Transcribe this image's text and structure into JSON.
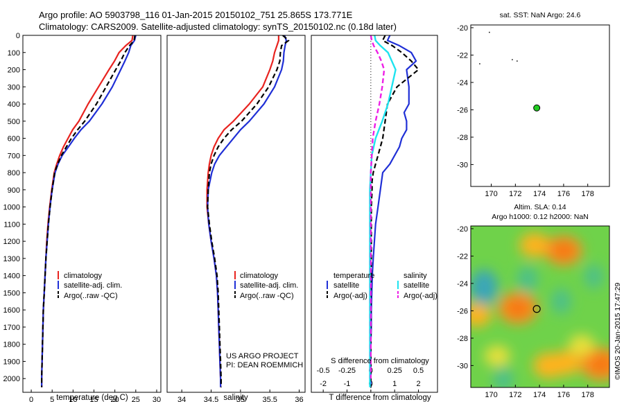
{
  "title": {
    "line1": "Argo profile: AO 5903798_116 01-Jan-2015 20150102_751 25.865S 173.771E",
    "line2": "Climatology: CARS2009. Satellite-adjusted climatology: synTS_20150102.nc (0.18d later)"
  },
  "credit": "©IMOS 20-Jan-2015 17:47:29",
  "project": {
    "line1": "US ARGO PROJECT",
    "line2": "PI: DEAN ROEMMICH"
  },
  "colors": {
    "climatology": "#e8231f",
    "satellite": "#1f2fd6",
    "argo": "#000000",
    "sat_diff_S": "#1ee3ef",
    "argo_diff_S": "#ee1fe6",
    "marker": "#22cc22"
  },
  "chart_data": [
    {
      "type": "line",
      "id": "temperature",
      "xlabel": "temperature (deg C)",
      "ylabel": "",
      "xlim": [
        -2,
        31
      ],
      "ylim": [
        2080,
        0
      ],
      "xticks": [
        0,
        5,
        10,
        15,
        20,
        25,
        30
      ],
      "yticks": [
        0,
        100,
        200,
        300,
        400,
        500,
        600,
        700,
        800,
        900,
        1000,
        1100,
        1200,
        1300,
        1400,
        1500,
        1600,
        1700,
        1800,
        1900,
        2000
      ],
      "legend": [
        "climatology",
        "satellite-adj. clim.",
        "Argo(..raw -QC)"
      ],
      "series": [
        {
          "name": "climatology",
          "style": "climatology",
          "x": [
            24.3,
            24.1,
            22.6,
            21.0,
            19.9,
            18.6,
            16.1,
            13.6,
            11.4,
            9.9,
            8.8,
            7.7,
            6.8,
            6.1,
            5.5,
            4.9,
            4.4,
            4.0,
            3.7,
            3.5,
            3.3,
            3.1,
            2.9,
            2.8,
            2.7,
            2.6,
            2.5,
            2.5
          ],
          "y": [
            0,
            30,
            60,
            100,
            150,
            200,
            300,
            400,
            500,
            550,
            600,
            650,
            700,
            750,
            800,
            900,
            1000,
            1100,
            1200,
            1300,
            1400,
            1500,
            1600,
            1700,
            1800,
            1900,
            2000,
            2050
          ]
        },
        {
          "name": "satellite-adj. clim.",
          "style": "satellite",
          "x": [
            25.0,
            24.7,
            23.8,
            23.3,
            22.4,
            21.4,
            19.4,
            16.9,
            13.9,
            11.9,
            10.3,
            8.9,
            7.4,
            6.4,
            5.7,
            5.0,
            4.5,
            4.1,
            3.8,
            3.5,
            3.3,
            3.1,
            2.9,
            2.8,
            2.7,
            2.6,
            2.5,
            2.5
          ],
          "y": [
            0,
            30,
            60,
            100,
            150,
            200,
            300,
            400,
            500,
            550,
            600,
            650,
            700,
            750,
            800,
            900,
            1000,
            1100,
            1200,
            1300,
            1400,
            1500,
            1600,
            1700,
            1800,
            1900,
            2000,
            2050
          ]
        },
        {
          "name": "Argo(..raw -QC)",
          "style": "argo",
          "x": [
            24.8,
            24.6,
            23.5,
            22.4,
            21.4,
            20.2,
            17.9,
            15.6,
            12.8,
            11.1,
            9.6,
            8.4,
            7.2,
            6.3,
            5.6,
            5.0,
            4.5,
            4.1,
            3.8,
            3.5,
            3.3,
            3.1,
            2.9,
            2.8,
            2.7,
            2.6,
            2.5,
            2.5
          ],
          "y": [
            0,
            30,
            60,
            100,
            150,
            200,
            300,
            400,
            500,
            550,
            600,
            650,
            700,
            750,
            800,
            900,
            1000,
            1100,
            1200,
            1300,
            1400,
            1500,
            1600,
            1700,
            1800,
            1900,
            2000,
            2050
          ]
        }
      ]
    },
    {
      "type": "line",
      "id": "salinity",
      "xlabel": "salinity",
      "ylabel": "",
      "xlim": [
        33.75,
        36.1
      ],
      "ylim": [
        2080,
        0
      ],
      "xticks": [
        34,
        34.5,
        35,
        35.5,
        36
      ],
      "legend": [
        "climatology",
        "satellite-adj. clim.",
        "Argo(..raw -QC)"
      ],
      "series": [
        {
          "name": "climatology",
          "style": "climatology",
          "x": [
            35.65,
            35.65,
            35.62,
            35.58,
            35.55,
            35.5,
            35.38,
            35.15,
            34.88,
            34.72,
            34.62,
            34.55,
            34.5,
            34.47,
            34.45,
            34.43,
            34.43,
            34.46,
            34.5,
            34.55,
            34.59,
            34.61,
            34.62,
            34.63,
            34.64,
            34.65,
            34.66,
            34.66
          ],
          "y": [
            0,
            30,
            60,
            100,
            150,
            200,
            300,
            400,
            500,
            550,
            600,
            650,
            700,
            750,
            800,
            900,
            1000,
            1100,
            1200,
            1300,
            1400,
            1500,
            1600,
            1700,
            1800,
            1900,
            2000,
            2050
          ]
        },
        {
          "name": "satellite-adj. clim.",
          "style": "satellite",
          "x": [
            35.75,
            35.78,
            35.76,
            35.74,
            35.73,
            35.7,
            35.58,
            35.4,
            35.15,
            35.0,
            34.88,
            34.76,
            34.64,
            34.56,
            34.51,
            34.45,
            34.44,
            34.46,
            34.5,
            34.55,
            34.59,
            34.61,
            34.62,
            34.63,
            34.64,
            34.65,
            34.66,
            34.66
          ],
          "y": [
            0,
            30,
            60,
            100,
            150,
            200,
            300,
            400,
            500,
            550,
            600,
            650,
            700,
            750,
            800,
            900,
            1000,
            1100,
            1200,
            1300,
            1400,
            1500,
            1600,
            1700,
            1800,
            1900,
            2000,
            2050
          ]
        },
        {
          "name": "Argo(..raw -QC)",
          "style": "argo",
          "x": [
            35.72,
            35.82,
            35.7,
            35.68,
            35.67,
            35.62,
            35.48,
            35.28,
            35.02,
            34.85,
            34.72,
            34.62,
            34.55,
            34.5,
            34.47,
            34.45,
            34.44,
            34.47,
            34.51,
            34.56,
            34.6,
            34.62,
            34.63,
            34.64,
            34.65,
            34.66,
            34.67,
            34.67
          ],
          "y": [
            0,
            30,
            60,
            100,
            150,
            200,
            300,
            400,
            500,
            550,
            600,
            650,
            700,
            750,
            800,
            900,
            1000,
            1100,
            1200,
            1300,
            1400,
            1500,
            1600,
            1700,
            1800,
            1900,
            2000,
            2050
          ]
        }
      ]
    },
    {
      "type": "line",
      "id": "difference",
      "xlabel": "T difference from climatology",
      "xlabel2": "S difference from climatology",
      "xlim": [
        -2.5,
        2.8
      ],
      "ylim": [
        2080,
        0
      ],
      "xticks": [
        -2,
        -1,
        0,
        1,
        2
      ],
      "s_xticks": [
        -0.5,
        -0.25,
        0,
        0.25,
        0.5
      ],
      "legend": {
        "temperature": "temperature",
        "salinity": "salinity",
        "satellite": "satellite",
        "argo": "Argo(-adj)"
      },
      "series": [
        {
          "name": "T satellite",
          "style": "satellite",
          "x": [
            0.8,
            0.7,
            1.2,
            1.7,
            1.9,
            1.5,
            1.6,
            1.6,
            1.4,
            1.5,
            1.5,
            1.3,
            1.2,
            0.8,
            0.5,
            0.4,
            0.3,
            0.2,
            0.15,
            0.1,
            0.06,
            0.04,
            0.02,
            0.02,
            0.0,
            0.0,
            0.0,
            0.0,
            0.0
          ],
          "y": [
            0,
            30,
            60,
            100,
            150,
            200,
            300,
            400,
            450,
            500,
            550,
            600,
            650,
            750,
            800,
            900,
            1000,
            1100,
            1200,
            1300,
            1400,
            1500,
            1600,
            1700,
            1800,
            1900,
            2000,
            2030,
            2050
          ]
        },
        {
          "name": "T Argo(-adj)",
          "style": "argo",
          "x": [
            0.6,
            0.5,
            0.9,
            1.3,
            1.7,
            2.0,
            1.1,
            0.7,
            0.6,
            0.5,
            0.4,
            0.3,
            0.2,
            0.1,
            0.05,
            0.05,
            0.02,
            0.02,
            0.02,
            0.0,
            0.0,
            0.0,
            0.0,
            0.0
          ],
          "y": [
            0,
            30,
            60,
            100,
            150,
            200,
            300,
            400,
            500,
            600,
            650,
            700,
            750,
            800,
            850,
            900,
            1000,
            1100,
            1300,
            1500,
            1700,
            1900,
            2000,
            2050
          ]
        },
        {
          "name": "S satellite",
          "style": "sat_diff_S",
          "x": [
            0.04,
            0.05,
            0.1,
            0.18,
            0.22,
            0.26,
            0.22,
            0.18,
            0.12,
            0.05,
            0.01,
            0.0,
            -0.01,
            -0.01,
            -0.01,
            -0.01,
            -0.01,
            -0.01,
            -0.01,
            -0.01,
            -0.01,
            -0.01
          ],
          "y": [
            0,
            30,
            60,
            100,
            150,
            200,
            300,
            400,
            500,
            600,
            700,
            800,
            900,
            1000,
            1100,
            1200,
            1400,
            1600,
            1800,
            1900,
            2000,
            2050
          ]
        },
        {
          "name": "S Argo(-adj)",
          "style": "argo_diff_S",
          "x": [
            0.0,
            0.01,
            0.03,
            0.07,
            0.11,
            0.14,
            0.12,
            0.09,
            0.05,
            0.02,
            0.01,
            0.0,
            0.0,
            0.0,
            0.0
          ],
          "y": [
            0,
            30,
            60,
            100,
            150,
            200,
            300,
            400,
            500,
            600,
            700,
            800,
            1000,
            1500,
            2000
          ]
        }
      ]
    },
    {
      "type": "scatter",
      "id": "sst-map",
      "title": "sat. SST: NaN Argo: 24.6",
      "xlim": [
        168.3,
        179.8
      ],
      "ylim": [
        -31.6,
        -19.8
      ],
      "xticks": [
        170,
        172,
        174,
        176,
        178
      ],
      "yticks": [
        -20,
        -22,
        -24,
        -26,
        -28,
        -30
      ],
      "points": [
        {
          "x": 173.771,
          "y": -25.865,
          "role": "argo",
          "color": "#22cc22"
        },
        {
          "x": 169.8,
          "y": -20.3,
          "role": "speck"
        },
        {
          "x": 169.0,
          "y": -22.6,
          "role": "speck"
        },
        {
          "x": 171.7,
          "y": -22.3,
          "role": "speck"
        },
        {
          "x": 172.1,
          "y": -22.4,
          "role": "speck"
        }
      ]
    },
    {
      "type": "heatmap",
      "id": "sla-map",
      "title1": "Altim. SLA: 0.14",
      "title2": "Argo h1000: 0.12 h2000: NaN",
      "xlim": [
        168.3,
        179.8
      ],
      "ylim": [
        -31.6,
        -19.8
      ],
      "xticks": [
        170,
        172,
        174,
        176,
        178
      ],
      "yticks": [
        -20,
        -22,
        -24,
        -26,
        -28,
        -30
      ],
      "background": "#6fd24a",
      "highs": [
        {
          "x": 173.6,
          "y": -21.2,
          "value": 0.55
        },
        {
          "x": 176.0,
          "y": -21.6,
          "value": 0.8
        },
        {
          "x": 172.2,
          "y": -25.8,
          "value": 0.9
        },
        {
          "x": 168.8,
          "y": -26.3,
          "value": 0.5
        },
        {
          "x": 174.8,
          "y": -30.0,
          "value": 0.6
        },
        {
          "x": 176.2,
          "y": -29.8,
          "value": 0.55
        },
        {
          "x": 179.1,
          "y": -29.9,
          "value": 0.95
        },
        {
          "x": 177.5,
          "y": -28.5,
          "value": 0.35
        },
        {
          "x": 170.5,
          "y": -29.3,
          "value": 0.35
        }
      ],
      "lows": [
        {
          "x": 169.4,
          "y": -24.3,
          "value": -0.7
        },
        {
          "x": 173.0,
          "y": -23.7,
          "value": -0.35
        },
        {
          "x": 175.8,
          "y": -25.3,
          "value": -0.3
        },
        {
          "x": 178.5,
          "y": -23.5,
          "value": -0.25
        },
        {
          "x": 171.0,
          "y": -31.0,
          "value": -0.3
        }
      ],
      "marker": {
        "x": 173.771,
        "y": -25.865
      }
    }
  ]
}
